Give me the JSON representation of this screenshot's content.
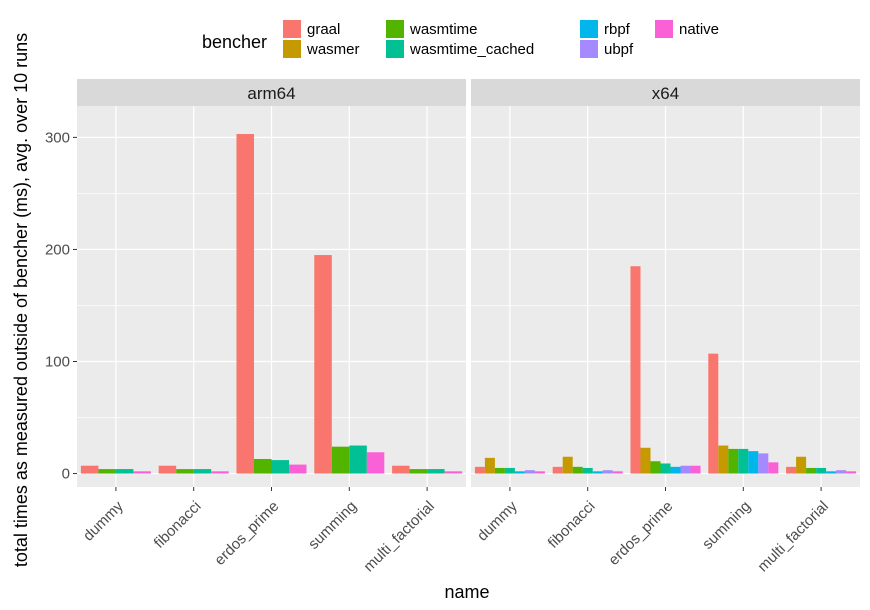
{
  "chart_data": {
    "type": "bar",
    "ylabel": "total times as measured outside of bencher (ms), avg. over 10 runs",
    "xlabel": "name",
    "ylim": [
      -12,
      328
    ],
    "yticks": [
      0,
      100,
      200,
      300
    ],
    "grid": true,
    "categories": [
      "dummy",
      "fibonacci",
      "erdos_prime",
      "summing",
      "multi_factorial"
    ],
    "legend": {
      "title": "bencher",
      "position": "top",
      "entries": [
        {
          "name": "graal",
          "color": "#F8766D"
        },
        {
          "name": "wasmer",
          "color": "#C49A00"
        },
        {
          "name": "wasmtime",
          "color": "#53B400"
        },
        {
          "name": "wasmtime_cached",
          "color": "#00C094"
        },
        {
          "name": "rbpf",
          "color": "#00B6EB"
        },
        {
          "name": "ubpf",
          "color": "#A58AFF"
        },
        {
          "name": "native",
          "color": "#FB61D7"
        }
      ]
    },
    "panels": [
      {
        "label": "arm64",
        "series": [
          {
            "name": "graal",
            "values": [
              7,
              7,
              303,
              195,
              7
            ]
          },
          {
            "name": "wasmtime",
            "values": [
              4,
              4,
              13,
              24,
              4
            ]
          },
          {
            "name": "wasmtime_cached",
            "values": [
              4,
              4,
              12,
              25,
              4
            ]
          },
          {
            "name": "native",
            "values": [
              2,
              2,
              8,
              19,
              2
            ]
          }
        ]
      },
      {
        "label": "x64",
        "series": [
          {
            "name": "graal",
            "values": [
              6,
              6,
              185,
              107,
              6
            ]
          },
          {
            "name": "wasmer",
            "values": [
              14,
              15,
              23,
              25,
              15
            ]
          },
          {
            "name": "wasmtime",
            "values": [
              5,
              6,
              11,
              22,
              5
            ]
          },
          {
            "name": "wasmtime_cached",
            "values": [
              5,
              5,
              9,
              22,
              5
            ]
          },
          {
            "name": "rbpf",
            "values": [
              2,
              2,
              6,
              20,
              2
            ]
          },
          {
            "name": "ubpf",
            "values": [
              3,
              3,
              7,
              18,
              3
            ]
          },
          {
            "name": "native",
            "values": [
              2,
              2,
              7,
              10,
              2
            ]
          }
        ]
      }
    ]
  }
}
